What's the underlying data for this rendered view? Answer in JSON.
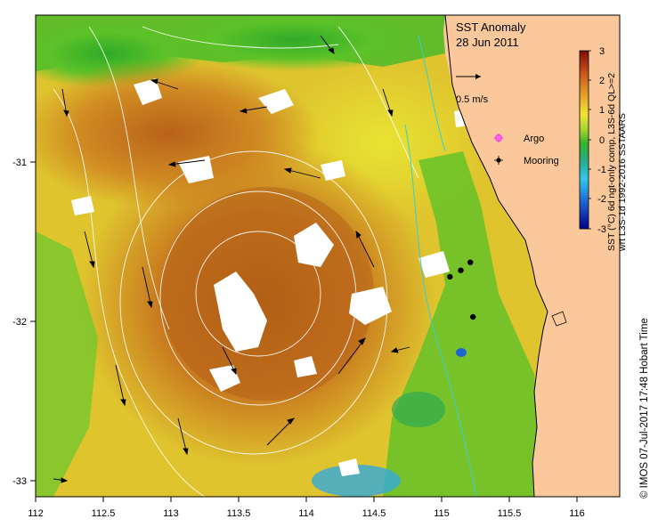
{
  "title": {
    "line1": "SST Anomaly",
    "line2": "28 Jun 2011"
  },
  "scale_arrow_label": "0.5 m/s",
  "legend": {
    "argo": {
      "label": "Argo",
      "color": "#ff33ff"
    },
    "mooring": {
      "label": "Mooring",
      "color": "#000000"
    }
  },
  "colorbar": {
    "ticks": [
      "3",
      "2",
      "1",
      "0",
      "-1",
      "-2",
      "-3"
    ],
    "label_line1": "SST (°C) 6d ngt-only comp, L3S-6d QL>=2",
    "label_line2": "wrt L3S-1d 1992-2016 SSTAARS"
  },
  "credit": "© IMOS 07-Jul-2017 17:48 Hobart Time",
  "axes": {
    "x_ticks": [
      "112",
      "112.5",
      "113",
      "113.5",
      "114",
      "114.5",
      "115",
      "115.5",
      "116"
    ],
    "y_ticks": [
      "-31",
      "-32",
      "-33"
    ]
  },
  "map_data": {
    "lon_range": [
      112,
      116.3
    ],
    "lat_range": [
      -33.1,
      -30.1
    ],
    "moorings": [
      {
        "lon": 115.05,
        "lat": -31.73
      },
      {
        "lon": 115.13,
        "lat": -31.69
      },
      {
        "lon": 115.2,
        "lat": -31.64
      },
      {
        "lon": 115.22,
        "lat": -31.98
      }
    ]
  },
  "colors": {
    "land": "#fac89a",
    "ocean_warm": "#c8781e",
    "ocean_hot": "#a0460a",
    "ocean_mid": "#e6b428",
    "ocean_yellow": "#e6e632",
    "ocean_cool": "#32b428",
    "ocean_cold": "#32aadc",
    "missing": "#ffffff"
  }
}
